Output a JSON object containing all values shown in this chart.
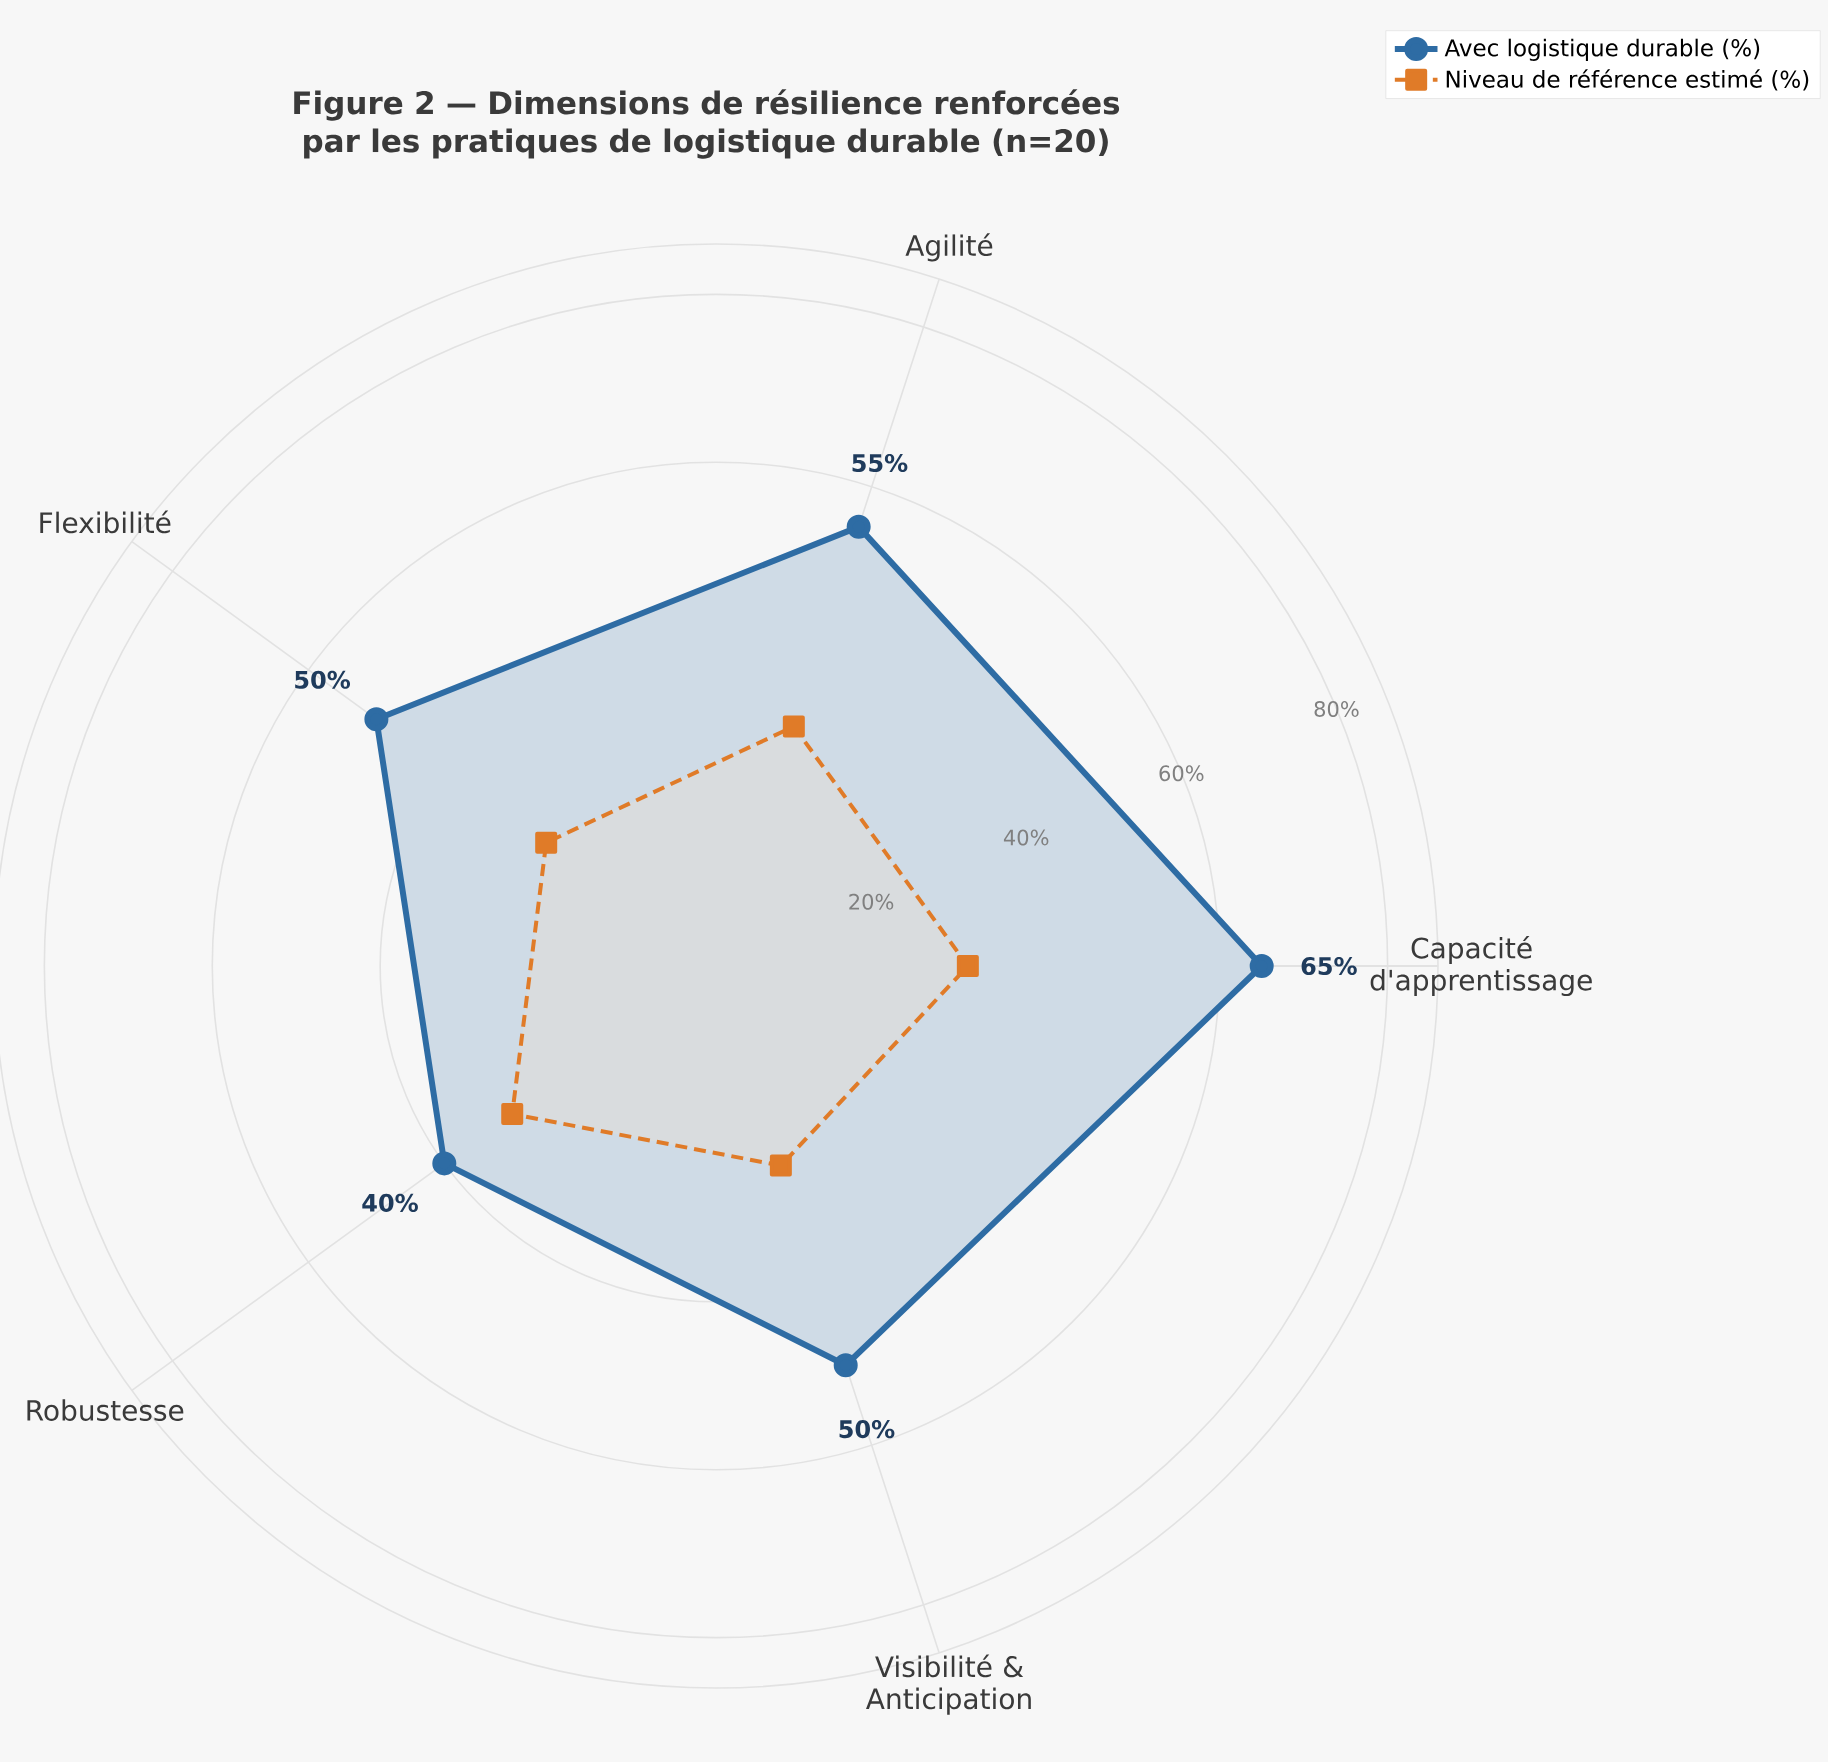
{
  "chart_data": {
    "type": "radar",
    "title": "Figure 2 — Dimensions de résilience renforcées par les pratiques de logistique durable (n=20)",
    "categories": [
      "Agilité",
      "Capacité d'apprentissage",
      "Visibilité & Anticipation",
      "Robustesse",
      "Flexibilité"
    ],
    "series": [
      {
        "name": "Avec logistique durable (%)",
        "color": "#2e6ca4",
        "values": [
          55,
          65,
          50,
          40,
          50
        ],
        "marker": "circle",
        "line_style": "solid",
        "value_labels": [
          "55%",
          "65%",
          "50%",
          "40%",
          "50%"
        ]
      },
      {
        "name": "Niveau de référence estimé (%)",
        "color": "#e07b28",
        "values": [
          30,
          30,
          25,
          30,
          25
        ],
        "marker": "square",
        "line_style": "dashed"
      }
    ],
    "ylim": [
      0,
      86
    ],
    "yticks": [
      {
        "value": 20,
        "label": "20%"
      },
      {
        "value": 40,
        "label": "40%"
      },
      {
        "value": 60,
        "label": "60%"
      },
      {
        "value": 80,
        "label": "80%"
      }
    ],
    "grid": true,
    "legend": "top right"
  }
}
